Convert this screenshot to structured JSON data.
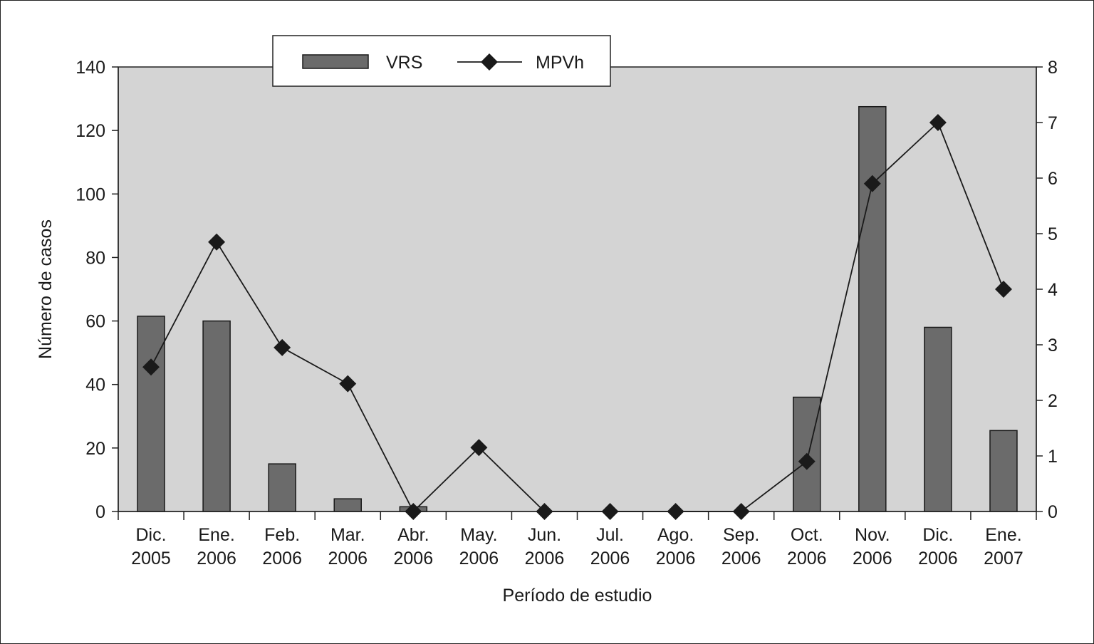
{
  "chart_data": {
    "type": "bar+line",
    "categories": [
      [
        "Dic.",
        "2005"
      ],
      [
        "Ene.",
        "2006"
      ],
      [
        "Feb.",
        "2006"
      ],
      [
        "Mar.",
        "2006"
      ],
      [
        "Abr.",
        "2006"
      ],
      [
        "May.",
        "2006"
      ],
      [
        "Jun.",
        "2006"
      ],
      [
        "Jul.",
        "2006"
      ],
      [
        "Ago.",
        "2006"
      ],
      [
        "Sep.",
        "2006"
      ],
      [
        "Oct.",
        "2006"
      ],
      [
        "Nov.",
        "2006"
      ],
      [
        "Dic.",
        "2006"
      ],
      [
        "Ene.",
        "2007"
      ]
    ],
    "series": [
      {
        "name": "VRS",
        "kind": "bar",
        "axis": "left",
        "color": "#6b6b6b",
        "values": [
          61.5,
          60,
          15,
          4,
          1.5,
          null,
          null,
          null,
          null,
          null,
          36,
          127.5,
          58,
          25.5
        ]
      },
      {
        "name": "MPVh",
        "kind": "line",
        "axis": "right",
        "marker": "diamond",
        "color": "#1a1a1a",
        "values": [
          2.6,
          4.85,
          2.95,
          2.3,
          0,
          1.15,
          0,
          0,
          0,
          0,
          0.9,
          5.9,
          7,
          4
        ]
      }
    ],
    "ylabel": "Número de casos",
    "xlabel": "Período de estudio",
    "ylim_left": [
      0,
      140
    ],
    "yticks_left": [
      0,
      20,
      40,
      60,
      80,
      100,
      120,
      140
    ],
    "ylim_right": [
      0,
      8
    ],
    "yticks_right": [
      0,
      1,
      2,
      3,
      4,
      5,
      6,
      7,
      8
    ],
    "plot_background": "#d4d4d4",
    "grid": false,
    "legend_position": "top"
  }
}
